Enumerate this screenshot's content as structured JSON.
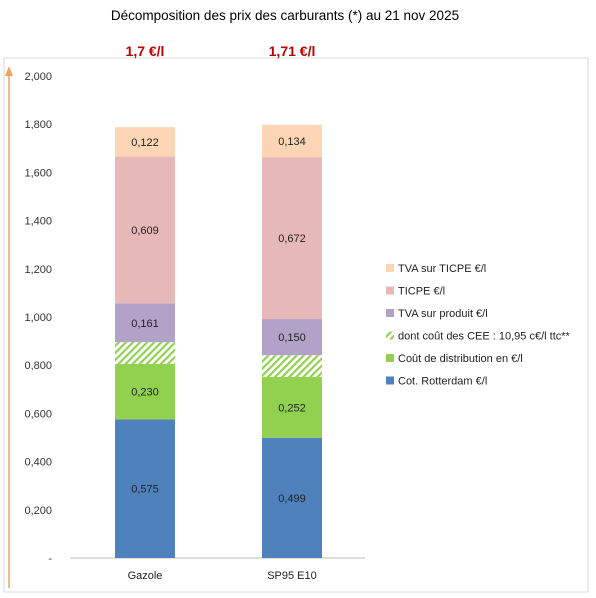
{
  "chart_data": {
    "type": "bar",
    "stacked": true,
    "title": "Décomposition des prix des carburants (*) au 21 nov 2025",
    "categories": [
      "Gazole",
      "SP95 E10"
    ],
    "totals": [
      "1,7 €/l",
      "1,71 €/l"
    ],
    "ylim": [
      0,
      2.0
    ],
    "yticks": [
      "-",
      "0,200",
      "0,400",
      "0,600",
      "0,800",
      "1,000",
      "1,200",
      "1,400",
      "1,600",
      "1,800",
      "2,000"
    ],
    "grid": false,
    "legend_position": "right",
    "series": [
      {
        "name": "Cot. Rotterdam €/l",
        "values": [
          0.575,
          0.499
        ],
        "labels": [
          "0,575",
          "0,499"
        ],
        "color": "#4f81bd"
      },
      {
        "name": "Coût de distribution en €/l",
        "values": [
          0.23,
          0.252
        ],
        "labels": [
          "0,230",
          "0,252"
        ],
        "color": "#92d050"
      },
      {
        "name": "dont coût des CEE : 10,95 c€/l ttc**",
        "values": [
          0.0905,
          0.0905
        ],
        "labels": [
          "",
          ""
        ],
        "color": "#92d050",
        "pattern": "hatch"
      },
      {
        "name": "TVA sur produit €/l",
        "values": [
          0.161,
          0.15
        ],
        "labels": [
          "0,161",
          "0,150"
        ],
        "color": "#b3a2c7"
      },
      {
        "name": "TICPE €/l",
        "values": [
          0.609,
          0.672
        ],
        "labels": [
          "0,609",
          "0,672"
        ],
        "color": "#e6b9b8"
      },
      {
        "name": "TVA sur TICPE €/l",
        "values": [
          0.122,
          0.134
        ],
        "labels": [
          "0,122",
          "0,134"
        ],
        "color": "#fcd5b5"
      }
    ],
    "legend_order": [
      5,
      4,
      3,
      2,
      1,
      0
    ]
  }
}
